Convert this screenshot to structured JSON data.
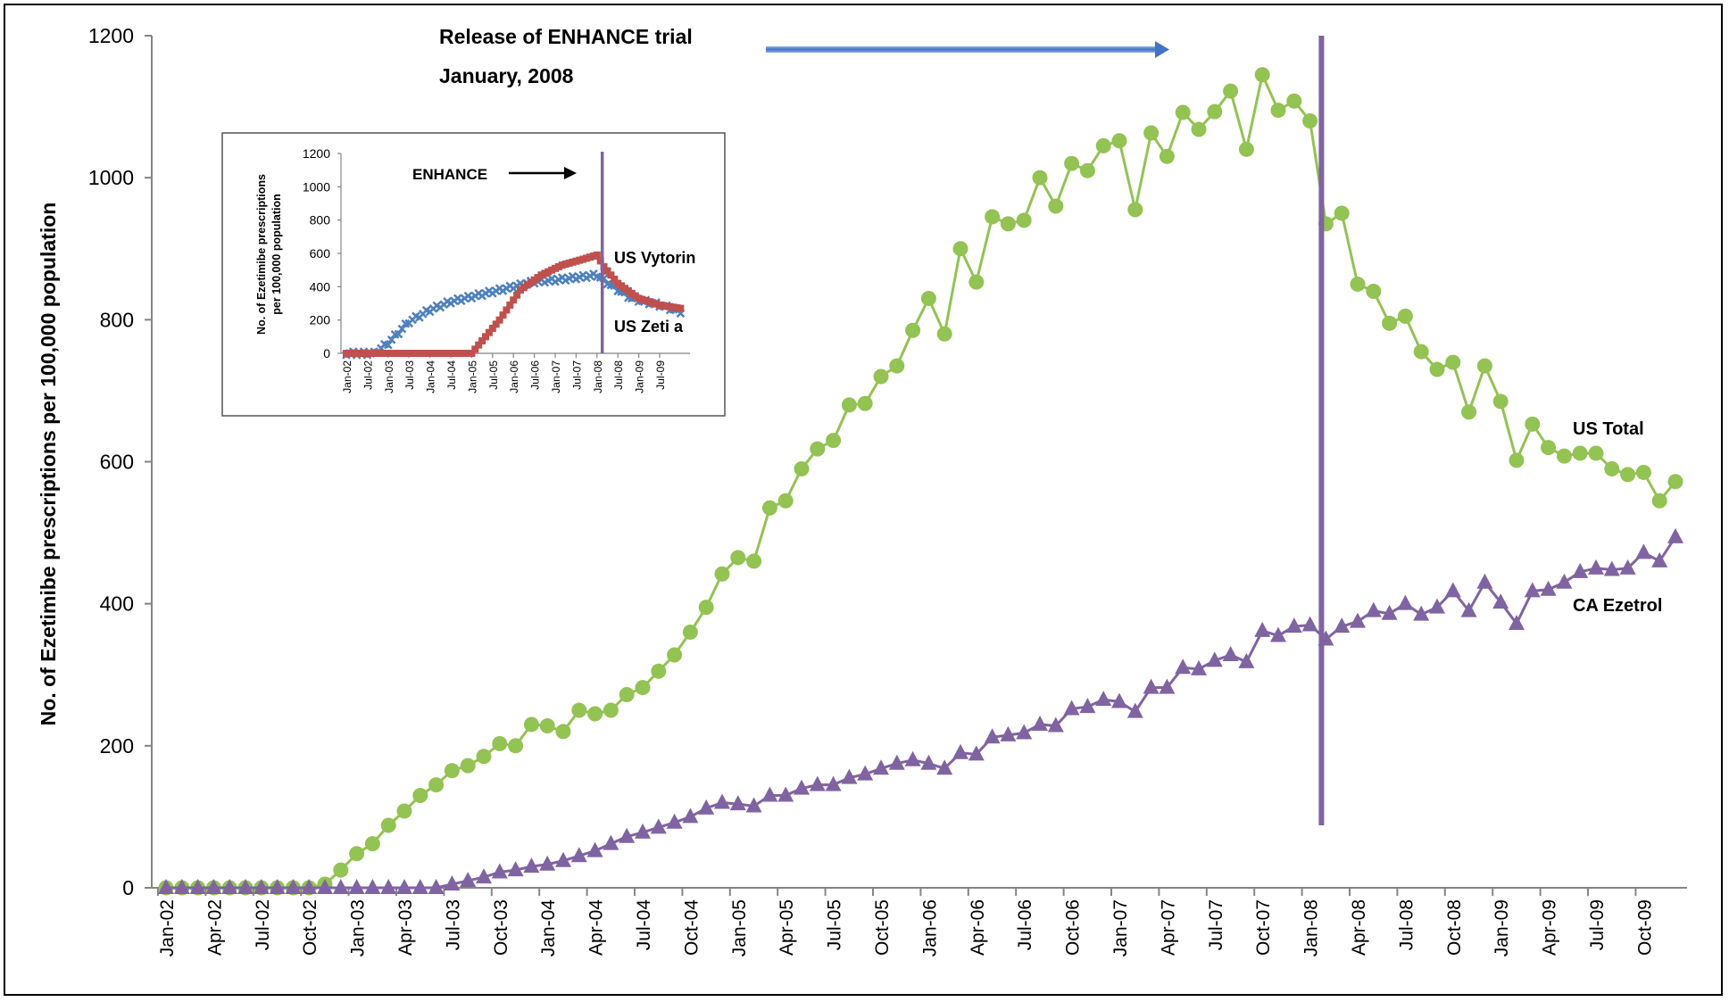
{
  "chart_data": [
    {
      "type": "line",
      "title": "",
      "ylabel": "No. of Ezetimibe prescriptions per 100,000 population",
      "xlabel": "",
      "ylim": [
        0,
        1200
      ],
      "yticks": [
        0,
        200,
        400,
        600,
        800,
        1000,
        1200
      ],
      "x_tick_labels": [
        "Jan-02",
        "Apr-02",
        "Jul-02",
        "Oct-02",
        "Jan-03",
        "Apr-03",
        "Jul-03",
        "Oct-03",
        "Jan-04",
        "Apr-04",
        "Jul-04",
        "Oct-04",
        "Jan-05",
        "Apr-05",
        "Jul-05",
        "Oct-05",
        "Jan-06",
        "Apr-06",
        "Jul-06",
        "Oct-06",
        "Jan-07",
        "Apr-07",
        "Jul-07",
        "Oct-07",
        "Jan-08",
        "Apr-08",
        "Jul-08",
        "Oct-08",
        "Jan-09",
        "Apr-09",
        "Jul-09",
        "Oct-09"
      ],
      "annotation": {
        "line1": "Release of ENHANCE trial",
        "line2": "January, 2008",
        "event_month_index": 73
      },
      "series": [
        {
          "name": "US Total",
          "color": "#92C353",
          "marker": "circle",
          "values": [
            0,
            0,
            0,
            0,
            0,
            0,
            0,
            0,
            0,
            0,
            5,
            25,
            48,
            62,
            88,
            108,
            130,
            145,
            165,
            172,
            185,
            203,
            200,
            230,
            228,
            220,
            250,
            245,
            250,
            272,
            282,
            305,
            328,
            360,
            395,
            442,
            465,
            460,
            535,
            545,
            590,
            618,
            630,
            680,
            682,
            720,
            735,
            785,
            830,
            780,
            900,
            853,
            945,
            935,
            940,
            1000,
            960,
            1020,
            1010,
            1045,
            1052,
            955,
            1063,
            1030,
            1092,
            1068,
            1093,
            1122,
            1040,
            1145,
            1095,
            1108,
            1080,
            935,
            950,
            850,
            840,
            795,
            805,
            755,
            730,
            740,
            670,
            735,
            685,
            602,
            653,
            620,
            608,
            612,
            612,
            590,
            582,
            585,
            545,
            572
          ]
        },
        {
          "name": "CA Ezetrol",
          "color": "#8064A2",
          "marker": "triangle",
          "values": [
            0,
            0,
            0,
            0,
            0,
            0,
            0,
            0,
            0,
            0,
            0,
            0,
            0,
            0,
            0,
            0,
            0,
            0,
            5,
            10,
            15,
            22,
            25,
            30,
            33,
            38,
            45,
            52,
            62,
            72,
            78,
            85,
            92,
            100,
            112,
            120,
            118,
            115,
            130,
            130,
            140,
            145,
            145,
            155,
            160,
            168,
            175,
            180,
            175,
            168,
            190,
            188,
            212,
            215,
            218,
            230,
            228,
            252,
            255,
            265,
            262,
            248,
            282,
            282,
            310,
            308,
            320,
            328,
            318,
            362,
            355,
            368,
            370,
            350,
            368,
            375,
            390,
            386,
            400,
            385,
            395,
            418,
            390,
            430,
            402,
            372,
            418,
            420,
            430,
            445,
            450,
            448,
            450,
            472,
            460,
            494
          ]
        }
      ]
    },
    {
      "type": "line",
      "inset": true,
      "title": "",
      "ylabel": "No. of Ezetimibe prescriptions per 100,000 population",
      "ylim": [
        0,
        1200
      ],
      "yticks": [
        0,
        200,
        400,
        600,
        800,
        1000,
        1200
      ],
      "x_tick_labels": [
        "Jan-02",
        "Jul-02",
        "Jan-03",
        "Jul-03",
        "Jan-04",
        "Jul-04",
        "Jan-05",
        "Jul-05",
        "Jan-06",
        "Jul-06",
        "Jan-07",
        "Jul-07",
        "Jan-08",
        "Jul-08",
        "Jan-09",
        "Jul-09"
      ],
      "annotation": {
        "label": "ENHANCE",
        "event_month_index": 73
      },
      "series": [
        {
          "name": "US Vytorin",
          "color": "#C0504D",
          "marker": "square",
          "points": [
            [
              0,
              0
            ],
            [
              30,
              0
            ],
            [
              36,
              0
            ],
            [
              38,
              50
            ],
            [
              44,
              200
            ],
            [
              50,
              380
            ],
            [
              56,
              470
            ],
            [
              62,
              530
            ],
            [
              68,
              565
            ],
            [
              72,
              590
            ],
            [
              74,
              520
            ],
            [
              78,
              420
            ],
            [
              84,
              330
            ],
            [
              90,
              290
            ],
            [
              96,
              270
            ]
          ]
        },
        {
          "name": "US Zeti a",
          "color": "#4F81BD",
          "marker": "x",
          "points": [
            [
              0,
              0
            ],
            [
              8,
              0
            ],
            [
              12,
              60
            ],
            [
              18,
              190
            ],
            [
              24,
              260
            ],
            [
              30,
              310
            ],
            [
              36,
              340
            ],
            [
              42,
              370
            ],
            [
              48,
              400
            ],
            [
              54,
              430
            ],
            [
              60,
              440
            ],
            [
              66,
              455
            ],
            [
              72,
              470
            ],
            [
              76,
              410
            ],
            [
              82,
              330
            ],
            [
              90,
              290
            ],
            [
              96,
              250
            ]
          ]
        }
      ]
    }
  ]
}
